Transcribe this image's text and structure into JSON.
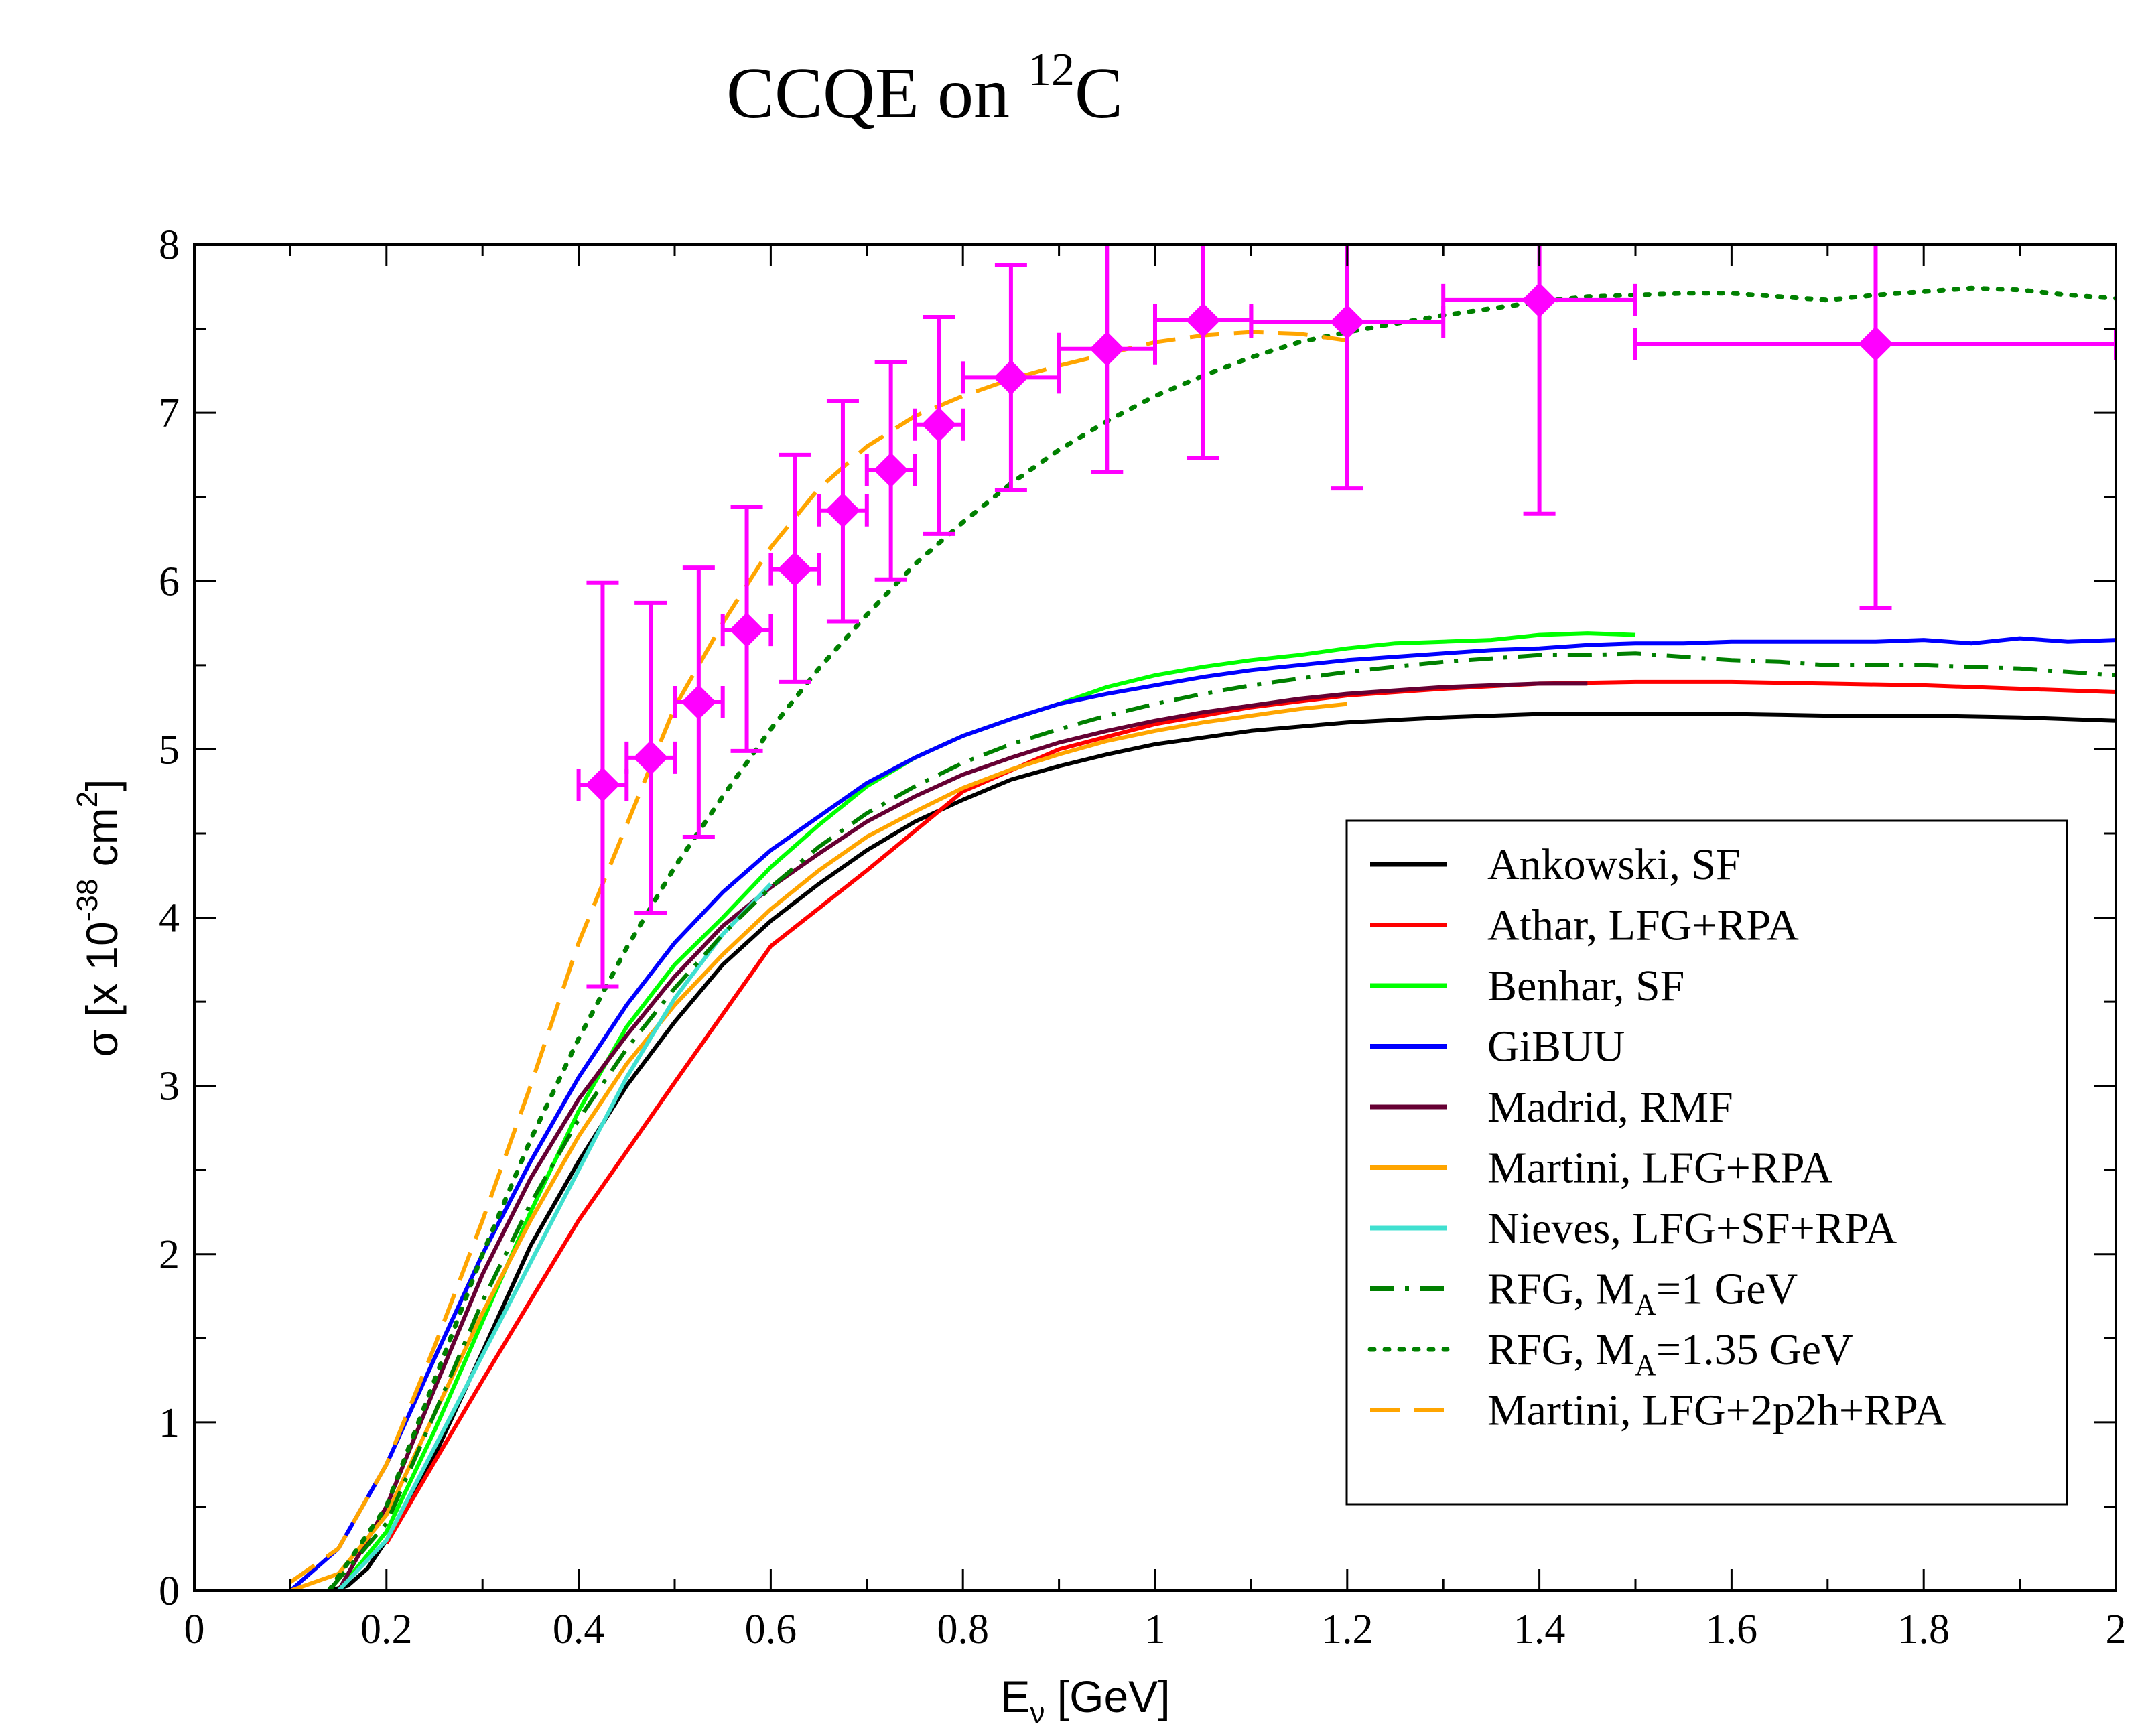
{
  "chart_data": {
    "type": "line",
    "title": {
      "main": "CCQE on ",
      "superscript": "12",
      "suffix": "C"
    },
    "xlabel": {
      "prefix": "E",
      "subscript": "ν",
      "suffix": " [GeV]"
    },
    "ylabel": {
      "prefix": "σ [x 10",
      "sup1": "-38",
      "middle": " cm",
      "sup2": "2",
      "suffix": "]"
    },
    "xlim": [
      0,
      2
    ],
    "ylim": [
      0,
      8
    ],
    "xticks": [
      0,
      0.2,
      0.4,
      0.6,
      0.8,
      1,
      1.2,
      1.4,
      1.6,
      1.8,
      2
    ],
    "xtick_labels": [
      "0",
      "0.2",
      "0.4",
      "0.6",
      "0.8",
      "1",
      "1.2",
      "1.4",
      "1.6",
      "1.8",
      "2"
    ],
    "yticks": [
      0,
      1,
      2,
      3,
      4,
      5,
      6,
      7,
      8
    ],
    "ytick_labels": [
      "0",
      "1",
      "2",
      "3",
      "4",
      "5",
      "6",
      "7",
      "8"
    ],
    "grid": false,
    "legend_position": "bottom-right",
    "series": [
      {
        "name": "Ankowski, SF",
        "color": "#000000",
        "dash": "solid",
        "x": [
          0,
          0.14,
          0.16,
          0.18,
          0.2,
          0.25,
          0.3,
          0.35,
          0.4,
          0.45,
          0.5,
          0.55,
          0.6,
          0.65,
          0.7,
          0.75,
          0.8,
          0.85,
          0.9,
          0.95,
          1.0,
          1.1,
          1.2,
          1.3,
          1.4,
          1.5,
          1.6,
          1.7,
          1.8,
          1.9,
          2.0
        ],
        "y": [
          0,
          0,
          0.03,
          0.13,
          0.3,
          0.8,
          1.42,
          2.05,
          2.55,
          3.0,
          3.38,
          3.72,
          3.98,
          4.2,
          4.4,
          4.57,
          4.7,
          4.82,
          4.9,
          4.97,
          5.03,
          5.11,
          5.16,
          5.19,
          5.21,
          5.21,
          5.21,
          5.2,
          5.2,
          5.19,
          5.17
        ]
      },
      {
        "name": "Athar, LFG+RPA",
        "color": "#ff0000",
        "dash": "solid",
        "x": [
          0.2,
          0.3,
          0.4,
          0.5,
          0.6,
          0.7,
          0.8,
          0.9,
          1.0,
          1.1,
          1.2,
          1.3,
          1.4,
          1.5,
          1.6,
          1.7,
          1.8,
          1.9,
          2.0
        ],
        "y": [
          0.28,
          1.25,
          2.2,
          3.02,
          3.83,
          4.28,
          4.75,
          5.0,
          5.15,
          5.25,
          5.32,
          5.36,
          5.39,
          5.4,
          5.4,
          5.39,
          5.38,
          5.36,
          5.34
        ]
      },
      {
        "name": "Benhar, SF",
        "color": "#00ff00",
        "dash": "solid",
        "x": [
          0.15,
          0.2,
          0.25,
          0.3,
          0.35,
          0.4,
          0.45,
          0.5,
          0.55,
          0.6,
          0.65,
          0.7,
          0.75,
          0.8,
          0.85,
          0.9,
          0.95,
          1.0,
          1.05,
          1.1,
          1.15,
          1.2,
          1.25,
          1.3,
          1.35,
          1.4,
          1.45,
          1.5
        ],
        "y": [
          0,
          0.35,
          0.95,
          1.6,
          2.25,
          2.85,
          3.35,
          3.72,
          4.0,
          4.3,
          4.55,
          4.78,
          4.95,
          5.08,
          5.18,
          5.27,
          5.37,
          5.44,
          5.49,
          5.53,
          5.56,
          5.6,
          5.63,
          5.64,
          5.65,
          5.68,
          5.69,
          5.68
        ]
      },
      {
        "name": "GiBUU",
        "color": "#0000ff",
        "dash": "solid",
        "x": [
          0,
          0.1,
          0.15,
          0.2,
          0.25,
          0.3,
          0.35,
          0.4,
          0.45,
          0.5,
          0.55,
          0.6,
          0.65,
          0.7,
          0.75,
          0.8,
          0.85,
          0.9,
          0.95,
          1.0,
          1.05,
          1.1,
          1.15,
          1.2,
          1.25,
          1.3,
          1.35,
          1.4,
          1.45,
          1.5,
          1.55,
          1.6,
          1.65,
          1.7,
          1.75,
          1.8,
          1.85,
          1.9,
          1.95,
          2.0
        ],
        "y": [
          0,
          0,
          0.25,
          0.75,
          1.38,
          2.0,
          2.55,
          3.05,
          3.48,
          3.85,
          4.15,
          4.4,
          4.6,
          4.8,
          4.95,
          5.08,
          5.18,
          5.27,
          5.33,
          5.38,
          5.43,
          5.47,
          5.5,
          5.53,
          5.55,
          5.57,
          5.59,
          5.6,
          5.62,
          5.63,
          5.63,
          5.64,
          5.64,
          5.64,
          5.64,
          5.65,
          5.63,
          5.66,
          5.64,
          5.65
        ]
      },
      {
        "name": "Madrid, RMF",
        "color": "#660033",
        "dash": "solid",
        "x": [
          0.15,
          0.2,
          0.25,
          0.3,
          0.35,
          0.4,
          0.45,
          0.5,
          0.55,
          0.6,
          0.65,
          0.7,
          0.75,
          0.8,
          0.85,
          0.9,
          0.95,
          1.0,
          1.05,
          1.1,
          1.15,
          1.2,
          1.25,
          1.3,
          1.35,
          1.4,
          1.45
        ],
        "y": [
          0,
          0.5,
          1.2,
          1.88,
          2.45,
          2.92,
          3.3,
          3.65,
          3.95,
          4.18,
          4.38,
          4.57,
          4.72,
          4.85,
          4.95,
          5.04,
          5.11,
          5.17,
          5.22,
          5.26,
          5.3,
          5.33,
          5.35,
          5.37,
          5.38,
          5.39,
          5.39
        ]
      },
      {
        "name": "Martini, LFG+RPA",
        "color": "#ffa500",
        "dash": "solid",
        "x": [
          0.1,
          0.15,
          0.2,
          0.25,
          0.3,
          0.35,
          0.4,
          0.45,
          0.5,
          0.55,
          0.6,
          0.65,
          0.7,
          0.75,
          0.8,
          0.85,
          0.9,
          0.95,
          1.0,
          1.05,
          1.1,
          1.15,
          1.2
        ],
        "y": [
          0,
          0.1,
          0.45,
          1.05,
          1.65,
          2.2,
          2.7,
          3.13,
          3.48,
          3.78,
          4.05,
          4.28,
          4.48,
          4.63,
          4.77,
          4.88,
          4.97,
          5.05,
          5.11,
          5.16,
          5.2,
          5.24,
          5.27
        ]
      },
      {
        "name": "Nieves, LFG+SF+RPA",
        "color": "#40e0d0",
        "dash": "solid",
        "x": [
          0.15,
          0.2,
          0.25,
          0.3,
          0.35,
          0.4,
          0.45,
          0.5,
          0.55,
          0.6
        ],
        "y": [
          0,
          0.3,
          0.85,
          1.4,
          1.95,
          2.5,
          3.05,
          3.52,
          3.9,
          4.2
        ]
      },
      {
        "name": "RFG, M_A=1 GeV",
        "label_parts": [
          "RFG, M",
          "A",
          "=1 GeV"
        ],
        "color": "#008000",
        "dash": "dashdot",
        "x": [
          0.14,
          0.2,
          0.25,
          0.3,
          0.35,
          0.4,
          0.45,
          0.5,
          0.55,
          0.6,
          0.65,
          0.7,
          0.75,
          0.8,
          0.85,
          0.9,
          0.95,
          1.0,
          1.05,
          1.1,
          1.15,
          1.2,
          1.25,
          1.3,
          1.35,
          1.4,
          1.45,
          1.5,
          1.55,
          1.6,
          1.65,
          1.7,
          1.75,
          1.8,
          1.85,
          1.9,
          1.95,
          2.0
        ],
        "y": [
          0,
          0.4,
          1.05,
          1.72,
          2.3,
          2.8,
          3.22,
          3.58,
          3.9,
          4.18,
          4.42,
          4.62,
          4.78,
          4.92,
          5.03,
          5.12,
          5.2,
          5.27,
          5.33,
          5.38,
          5.42,
          5.46,
          5.49,
          5.52,
          5.54,
          5.56,
          5.56,
          5.57,
          5.55,
          5.53,
          5.52,
          5.5,
          5.5,
          5.5,
          5.49,
          5.48,
          5.46,
          5.44
        ]
      },
      {
        "name": "RFG, M_A=1.35 GeV",
        "label_parts": [
          "RFG, M",
          "A",
          "=1.35 GeV"
        ],
        "color": "#008000",
        "dash": "dotted",
        "x": [
          0.14,
          0.2,
          0.25,
          0.3,
          0.35,
          0.4,
          0.45,
          0.5,
          0.55,
          0.6,
          0.65,
          0.7,
          0.75,
          0.8,
          0.85,
          0.9,
          0.95,
          1.0,
          1.05,
          1.1,
          1.15,
          1.2,
          1.25,
          1.3,
          1.35,
          1.4,
          1.45,
          1.5,
          1.55,
          1.6,
          1.65,
          1.7,
          1.75,
          1.8,
          1.85,
          1.9,
          1.95,
          2.0
        ],
        "y": [
          0,
          0.5,
          1.25,
          2.0,
          2.68,
          3.28,
          3.82,
          4.3,
          4.72,
          5.12,
          5.48,
          5.8,
          6.1,
          6.35,
          6.58,
          6.78,
          6.95,
          7.1,
          7.22,
          7.33,
          7.42,
          7.48,
          7.53,
          7.58,
          7.62,
          7.66,
          7.69,
          7.7,
          7.71,
          7.71,
          7.69,
          7.67,
          7.7,
          7.72,
          7.74,
          7.73,
          7.7,
          7.68
        ]
      },
      {
        "name": "Martini, LFG+2p2h+RPA",
        "color": "#ffa500",
        "dash": "dashed",
        "x": [
          0.1,
          0.15,
          0.2,
          0.25,
          0.3,
          0.35,
          0.4,
          0.45,
          0.5,
          0.55,
          0.6,
          0.65,
          0.7,
          0.75,
          0.8,
          0.85,
          0.9,
          0.95,
          1.0,
          1.05,
          1.1,
          1.15,
          1.2
        ],
        "y": [
          0.05,
          0.25,
          0.75,
          1.45,
          2.2,
          3.0,
          3.85,
          4.55,
          5.25,
          5.75,
          6.2,
          6.55,
          6.8,
          6.98,
          7.1,
          7.2,
          7.28,
          7.35,
          7.42,
          7.46,
          7.48,
          7.47,
          7.43
        ]
      }
    ],
    "data_points": {
      "name": "data",
      "color": "#ff00ff",
      "points": [
        {
          "x": 0.425,
          "y": 4.79,
          "xerr": 0.025,
          "ylo": 3.59,
          "yhi": 5.99
        },
        {
          "x": 0.475,
          "y": 4.95,
          "xerr": 0.025,
          "ylo": 4.03,
          "yhi": 5.87
        },
        {
          "x": 0.525,
          "y": 5.28,
          "xerr": 0.025,
          "ylo": 4.48,
          "yhi": 6.08
        },
        {
          "x": 0.575,
          "y": 5.71,
          "xerr": 0.025,
          "ylo": 4.99,
          "yhi": 6.44
        },
        {
          "x": 0.625,
          "y": 6.07,
          "xerr": 0.025,
          "ylo": 5.4,
          "yhi": 6.75
        },
        {
          "x": 0.675,
          "y": 6.42,
          "xerr": 0.025,
          "ylo": 5.76,
          "yhi": 7.07
        },
        {
          "x": 0.725,
          "y": 6.66,
          "xerr": 0.025,
          "ylo": 6.01,
          "yhi": 7.3
        },
        {
          "x": 0.775,
          "y": 6.93,
          "xerr": 0.025,
          "ylo": 6.28,
          "yhi": 7.57
        },
        {
          "x": 0.85,
          "y": 7.21,
          "xerr": 0.05,
          "ylo": 6.54,
          "yhi": 7.88
        },
        {
          "x": 0.95,
          "y": 7.38,
          "xerr": 0.05,
          "ylo": 6.65,
          "yhi": 8.1
        },
        {
          "x": 1.05,
          "y": 7.55,
          "xerr": 0.05,
          "ylo": 6.73,
          "yhi": 8.37
        },
        {
          "x": 1.2,
          "y": 7.54,
          "xerr": 0.1,
          "ylo": 6.55,
          "yhi": 8.53
        },
        {
          "x": 1.4,
          "y": 7.67,
          "xerr": 0.1,
          "ylo": 6.4,
          "yhi": 8.94
        },
        {
          "x": 1.75,
          "y": 7.41,
          "xerr": 0.25,
          "ylo": 5.84,
          "yhi": 8.98
        }
      ]
    }
  }
}
